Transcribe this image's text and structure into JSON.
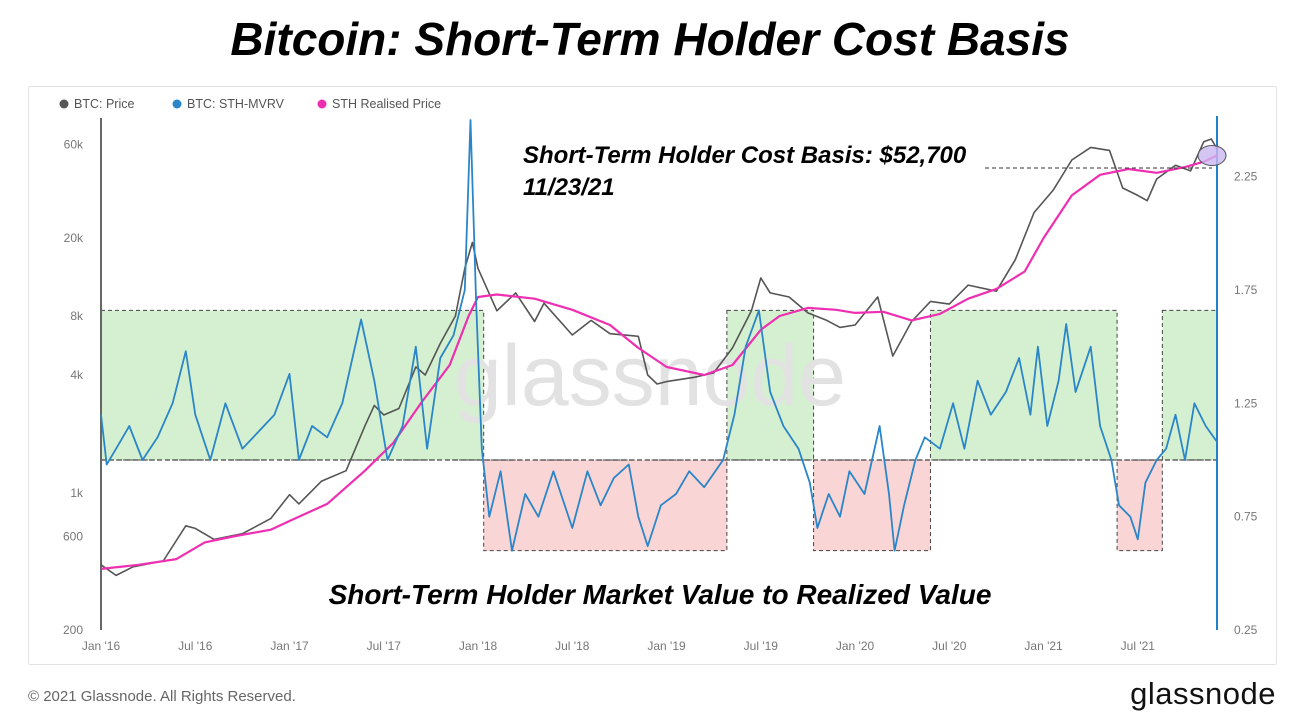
{
  "title": "Bitcoin: Short-Term Holder Cost Basis",
  "footer": {
    "copyright": "© 2021 Glassnode. All Rights Reserved.",
    "logo": "glassnode"
  },
  "watermark": "glassnode",
  "colors": {
    "price": "#555555",
    "mvrv": "#2a86c8",
    "realised": "#ee2fb2",
    "green_zone": "#b9e6b0",
    "red_zone": "#f6b9b9",
    "right_axis": "#1f82c8"
  },
  "chart_data": {
    "type": "line",
    "x_range": [
      2016.0,
      2021.92
    ],
    "x_ticks": [
      {
        "label": "Jan '16",
        "t": 2016.0
      },
      {
        "label": "Jul '16",
        "t": 2016.5
      },
      {
        "label": "Jan '17",
        "t": 2017.0
      },
      {
        "label": "Jul '17",
        "t": 2017.5
      },
      {
        "label": "Jan '18",
        "t": 2018.0
      },
      {
        "label": "Jul '18",
        "t": 2018.5
      },
      {
        "label": "Jan '19",
        "t": 2019.0
      },
      {
        "label": "Jul '19",
        "t": 2019.5
      },
      {
        "label": "Jan '20",
        "t": 2020.0
      },
      {
        "label": "Jul '20",
        "t": 2020.5
      },
      {
        "label": "Jan '21",
        "t": 2021.0
      },
      {
        "label": "Jul '21",
        "t": 2021.5
      }
    ],
    "left_axis": {
      "scale": "log",
      "range": [
        200,
        80000
      ],
      "ticks": [
        {
          "label": "200",
          "v": 200
        },
        {
          "label": "600",
          "v": 600
        },
        {
          "label": "1k",
          "v": 1000
        },
        {
          "label": "4k",
          "v": 4000
        },
        {
          "label": "8k",
          "v": 8000
        },
        {
          "label": "20k",
          "v": 20000
        },
        {
          "label": "60k",
          "v": 60000
        }
      ]
    },
    "right_axis": {
      "scale": "linear",
      "range": [
        0.25,
        2.5
      ],
      "ticks": [
        {
          "label": "0.25",
          "v": 0.25
        },
        {
          "label": "0.75",
          "v": 0.75
        },
        {
          "label": "1.25",
          "v": 1.25
        },
        {
          "label": "1.75",
          "v": 1.75
        },
        {
          "label": "2.25",
          "v": 2.25
        }
      ]
    },
    "series": [
      {
        "name": "BTC: Price",
        "axis": "left",
        "points": [
          [
            2016.0,
            430
          ],
          [
            2016.08,
            380
          ],
          [
            2016.17,
            420
          ],
          [
            2016.33,
            450
          ],
          [
            2016.45,
            680
          ],
          [
            2016.5,
            660
          ],
          [
            2016.6,
            580
          ],
          [
            2016.75,
            620
          ],
          [
            2016.9,
            740
          ],
          [
            2017.0,
            980
          ],
          [
            2017.05,
            880
          ],
          [
            2017.17,
            1150
          ],
          [
            2017.3,
            1300
          ],
          [
            2017.4,
            2200
          ],
          [
            2017.45,
            2800
          ],
          [
            2017.5,
            2500
          ],
          [
            2017.58,
            2700
          ],
          [
            2017.67,
            4400
          ],
          [
            2017.72,
            4000
          ],
          [
            2017.8,
            5800
          ],
          [
            2017.88,
            8000
          ],
          [
            2017.93,
            14000
          ],
          [
            2017.97,
            19000
          ],
          [
            2018.0,
            14000
          ],
          [
            2018.1,
            8500
          ],
          [
            2018.2,
            10500
          ],
          [
            2018.3,
            7500
          ],
          [
            2018.35,
            9300
          ],
          [
            2018.5,
            6400
          ],
          [
            2018.6,
            7600
          ],
          [
            2018.7,
            6500
          ],
          [
            2018.85,
            6300
          ],
          [
            2018.9,
            4000
          ],
          [
            2018.95,
            3600
          ],
          [
            2019.0,
            3700
          ],
          [
            2019.15,
            3900
          ],
          [
            2019.25,
            4100
          ],
          [
            2019.35,
            5500
          ],
          [
            2019.45,
            8500
          ],
          [
            2019.5,
            12500
          ],
          [
            2019.55,
            10500
          ],
          [
            2019.65,
            10000
          ],
          [
            2019.75,
            8300
          ],
          [
            2019.85,
            7600
          ],
          [
            2019.92,
            7000
          ],
          [
            2020.0,
            7200
          ],
          [
            2020.12,
            10000
          ],
          [
            2020.2,
            5000
          ],
          [
            2020.3,
            7500
          ],
          [
            2020.4,
            9500
          ],
          [
            2020.5,
            9200
          ],
          [
            2020.6,
            11500
          ],
          [
            2020.75,
            10700
          ],
          [
            2020.85,
            15500
          ],
          [
            2020.95,
            27000
          ],
          [
            2021.05,
            35000
          ],
          [
            2021.15,
            50000
          ],
          [
            2021.25,
            58000
          ],
          [
            2021.35,
            56000
          ],
          [
            2021.42,
            36000
          ],
          [
            2021.5,
            33000
          ],
          [
            2021.55,
            31000
          ],
          [
            2021.6,
            40000
          ],
          [
            2021.7,
            47000
          ],
          [
            2021.78,
            44000
          ],
          [
            2021.85,
            62000
          ],
          [
            2021.89,
            64000
          ],
          [
            2021.92,
            57000
          ]
        ]
      },
      {
        "name": "STH Realised Price",
        "axis": "left",
        "points": [
          [
            2016.0,
            410
          ],
          [
            2016.2,
            430
          ],
          [
            2016.4,
            460
          ],
          [
            2016.55,
            560
          ],
          [
            2016.7,
            600
          ],
          [
            2016.9,
            650
          ],
          [
            2017.0,
            720
          ],
          [
            2017.2,
            880
          ],
          [
            2017.4,
            1300
          ],
          [
            2017.55,
            1800
          ],
          [
            2017.7,
            2900
          ],
          [
            2017.85,
            4500
          ],
          [
            2017.95,
            8000
          ],
          [
            2018.0,
            10000
          ],
          [
            2018.1,
            10300
          ],
          [
            2018.3,
            9800
          ],
          [
            2018.5,
            8600
          ],
          [
            2018.7,
            7200
          ],
          [
            2018.85,
            5500
          ],
          [
            2019.0,
            4400
          ],
          [
            2019.2,
            4000
          ],
          [
            2019.35,
            4500
          ],
          [
            2019.5,
            6800
          ],
          [
            2019.6,
            8000
          ],
          [
            2019.75,
            8800
          ],
          [
            2019.9,
            8600
          ],
          [
            2020.0,
            8300
          ],
          [
            2020.15,
            8400
          ],
          [
            2020.3,
            7600
          ],
          [
            2020.45,
            8200
          ],
          [
            2020.6,
            9800
          ],
          [
            2020.75,
            11000
          ],
          [
            2020.9,
            13500
          ],
          [
            2021.0,
            20000
          ],
          [
            2021.15,
            33000
          ],
          [
            2021.3,
            42000
          ],
          [
            2021.45,
            45000
          ],
          [
            2021.6,
            43000
          ],
          [
            2021.75,
            46000
          ],
          [
            2021.85,
            49000
          ],
          [
            2021.92,
            52700
          ]
        ]
      },
      {
        "name": "BTC: STH-MVRV",
        "axis": "right",
        "points": [
          [
            2016.0,
            1.2
          ],
          [
            2016.03,
            0.98
          ],
          [
            2016.08,
            1.05
          ],
          [
            2016.15,
            1.15
          ],
          [
            2016.22,
            1.0
          ],
          [
            2016.3,
            1.1
          ],
          [
            2016.38,
            1.25
          ],
          [
            2016.45,
            1.48
          ],
          [
            2016.5,
            1.2
          ],
          [
            2016.58,
            1.0
          ],
          [
            2016.66,
            1.25
          ],
          [
            2016.75,
            1.05
          ],
          [
            2016.83,
            1.12
          ],
          [
            2016.92,
            1.2
          ],
          [
            2017.0,
            1.38
          ],
          [
            2017.05,
            1.0
          ],
          [
            2017.12,
            1.15
          ],
          [
            2017.2,
            1.1
          ],
          [
            2017.28,
            1.25
          ],
          [
            2017.38,
            1.62
          ],
          [
            2017.45,
            1.35
          ],
          [
            2017.52,
            1.0
          ],
          [
            2017.6,
            1.15
          ],
          [
            2017.67,
            1.5
          ],
          [
            2017.73,
            1.05
          ],
          [
            2017.8,
            1.45
          ],
          [
            2017.87,
            1.55
          ],
          [
            2017.93,
            1.75
          ],
          [
            2017.96,
            2.5
          ],
          [
            2017.99,
            1.7
          ],
          [
            2018.02,
            1.05
          ],
          [
            2018.06,
            0.75
          ],
          [
            2018.12,
            0.95
          ],
          [
            2018.18,
            0.6
          ],
          [
            2018.25,
            0.85
          ],
          [
            2018.32,
            0.75
          ],
          [
            2018.4,
            0.95
          ],
          [
            2018.5,
            0.7
          ],
          [
            2018.58,
            0.95
          ],
          [
            2018.65,
            0.8
          ],
          [
            2018.72,
            0.92
          ],
          [
            2018.8,
            0.98
          ],
          [
            2018.85,
            0.75
          ],
          [
            2018.9,
            0.62
          ],
          [
            2018.97,
            0.8
          ],
          [
            2019.05,
            0.85
          ],
          [
            2019.12,
            0.95
          ],
          [
            2019.2,
            0.88
          ],
          [
            2019.3,
            1.0
          ],
          [
            2019.36,
            1.2
          ],
          [
            2019.42,
            1.5
          ],
          [
            2019.49,
            1.66
          ],
          [
            2019.55,
            1.3
          ],
          [
            2019.62,
            1.15
          ],
          [
            2019.7,
            1.05
          ],
          [
            2019.76,
            0.9
          ],
          [
            2019.8,
            0.7
          ],
          [
            2019.86,
            0.85
          ],
          [
            2019.92,
            0.75
          ],
          [
            2019.97,
            0.95
          ],
          [
            2020.05,
            0.85
          ],
          [
            2020.13,
            1.15
          ],
          [
            2020.18,
            0.85
          ],
          [
            2020.21,
            0.6
          ],
          [
            2020.26,
            0.8
          ],
          [
            2020.32,
            1.0
          ],
          [
            2020.37,
            1.1
          ],
          [
            2020.45,
            1.05
          ],
          [
            2020.52,
            1.25
          ],
          [
            2020.58,
            1.05
          ],
          [
            2020.65,
            1.35
          ],
          [
            2020.72,
            1.2
          ],
          [
            2020.8,
            1.3
          ],
          [
            2020.87,
            1.45
          ],
          [
            2020.93,
            1.2
          ],
          [
            2020.97,
            1.5
          ],
          [
            2021.02,
            1.15
          ],
          [
            2021.08,
            1.35
          ],
          [
            2021.12,
            1.6
          ],
          [
            2021.17,
            1.3
          ],
          [
            2021.25,
            1.5
          ],
          [
            2021.3,
            1.15
          ],
          [
            2021.36,
            1.0
          ],
          [
            2021.4,
            0.8
          ],
          [
            2021.46,
            0.75
          ],
          [
            2021.5,
            0.65
          ],
          [
            2021.54,
            0.9
          ],
          [
            2021.6,
            1.0
          ],
          [
            2021.65,
            1.05
          ],
          [
            2021.7,
            1.2
          ],
          [
            2021.75,
            1.0
          ],
          [
            2021.8,
            1.25
          ],
          [
            2021.86,
            1.15
          ],
          [
            2021.92,
            1.08
          ]
        ]
      }
    ],
    "zones": [
      {
        "type": "above_1",
        "x0": 2016.0,
        "x1": 2018.03
      },
      {
        "type": "below_1",
        "x0": 2018.03,
        "x1": 2019.32
      },
      {
        "type": "above_1",
        "x0": 2019.32,
        "x1": 2019.78
      },
      {
        "type": "below_1",
        "x0": 2019.78,
        "x1": 2020.4
      },
      {
        "type": "above_1",
        "x0": 2020.4,
        "x1": 2021.39
      },
      {
        "type": "below_1",
        "x0": 2021.39,
        "x1": 2021.63
      },
      {
        "type": "above_1",
        "x0": 2021.63,
        "x1": 2021.92
      }
    ],
    "zone_levels": {
      "baseline": 1.0,
      "green_top": 1.66,
      "red_bottom": 0.6
    },
    "annotation": {
      "title": "Short-Term Holder Cost Basis: $52,700",
      "date": "11/23/21",
      "value": 52700,
      "t": 2021.92
    },
    "subtitle": "Short-Term Holder Market Value to Realized Value"
  }
}
